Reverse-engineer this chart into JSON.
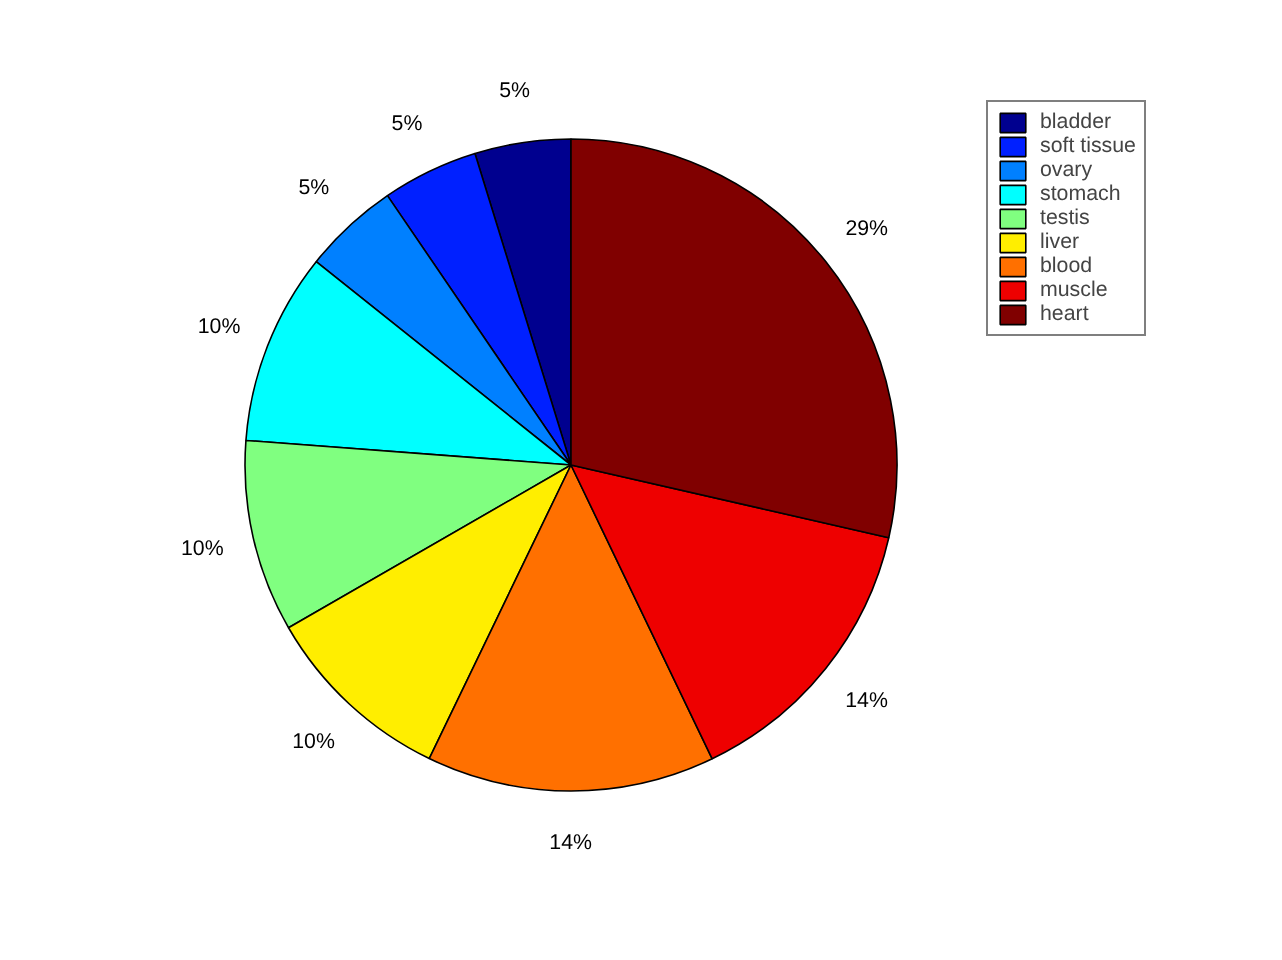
{
  "chart_data": {
    "type": "pie",
    "categories": [
      "bladder",
      "soft tissue",
      "ovary",
      "stomach",
      "testis",
      "liver",
      "blood",
      "muscle",
      "heart"
    ],
    "values": [
      4.76,
      4.76,
      4.76,
      9.52,
      9.52,
      9.52,
      14.29,
      14.29,
      28.58
    ],
    "value_labels": [
      "5%",
      "5%",
      "5%",
      "10%",
      "10%",
      "10%",
      "14%",
      "14%",
      "29%"
    ],
    "colors": [
      "#00008f",
      "#0020ff",
      "#0080ff",
      "#00ffff",
      "#80ff80",
      "#ffee00",
      "#ff7000",
      "#ee0000",
      "#800000"
    ],
    "legend": "top right"
  }
}
